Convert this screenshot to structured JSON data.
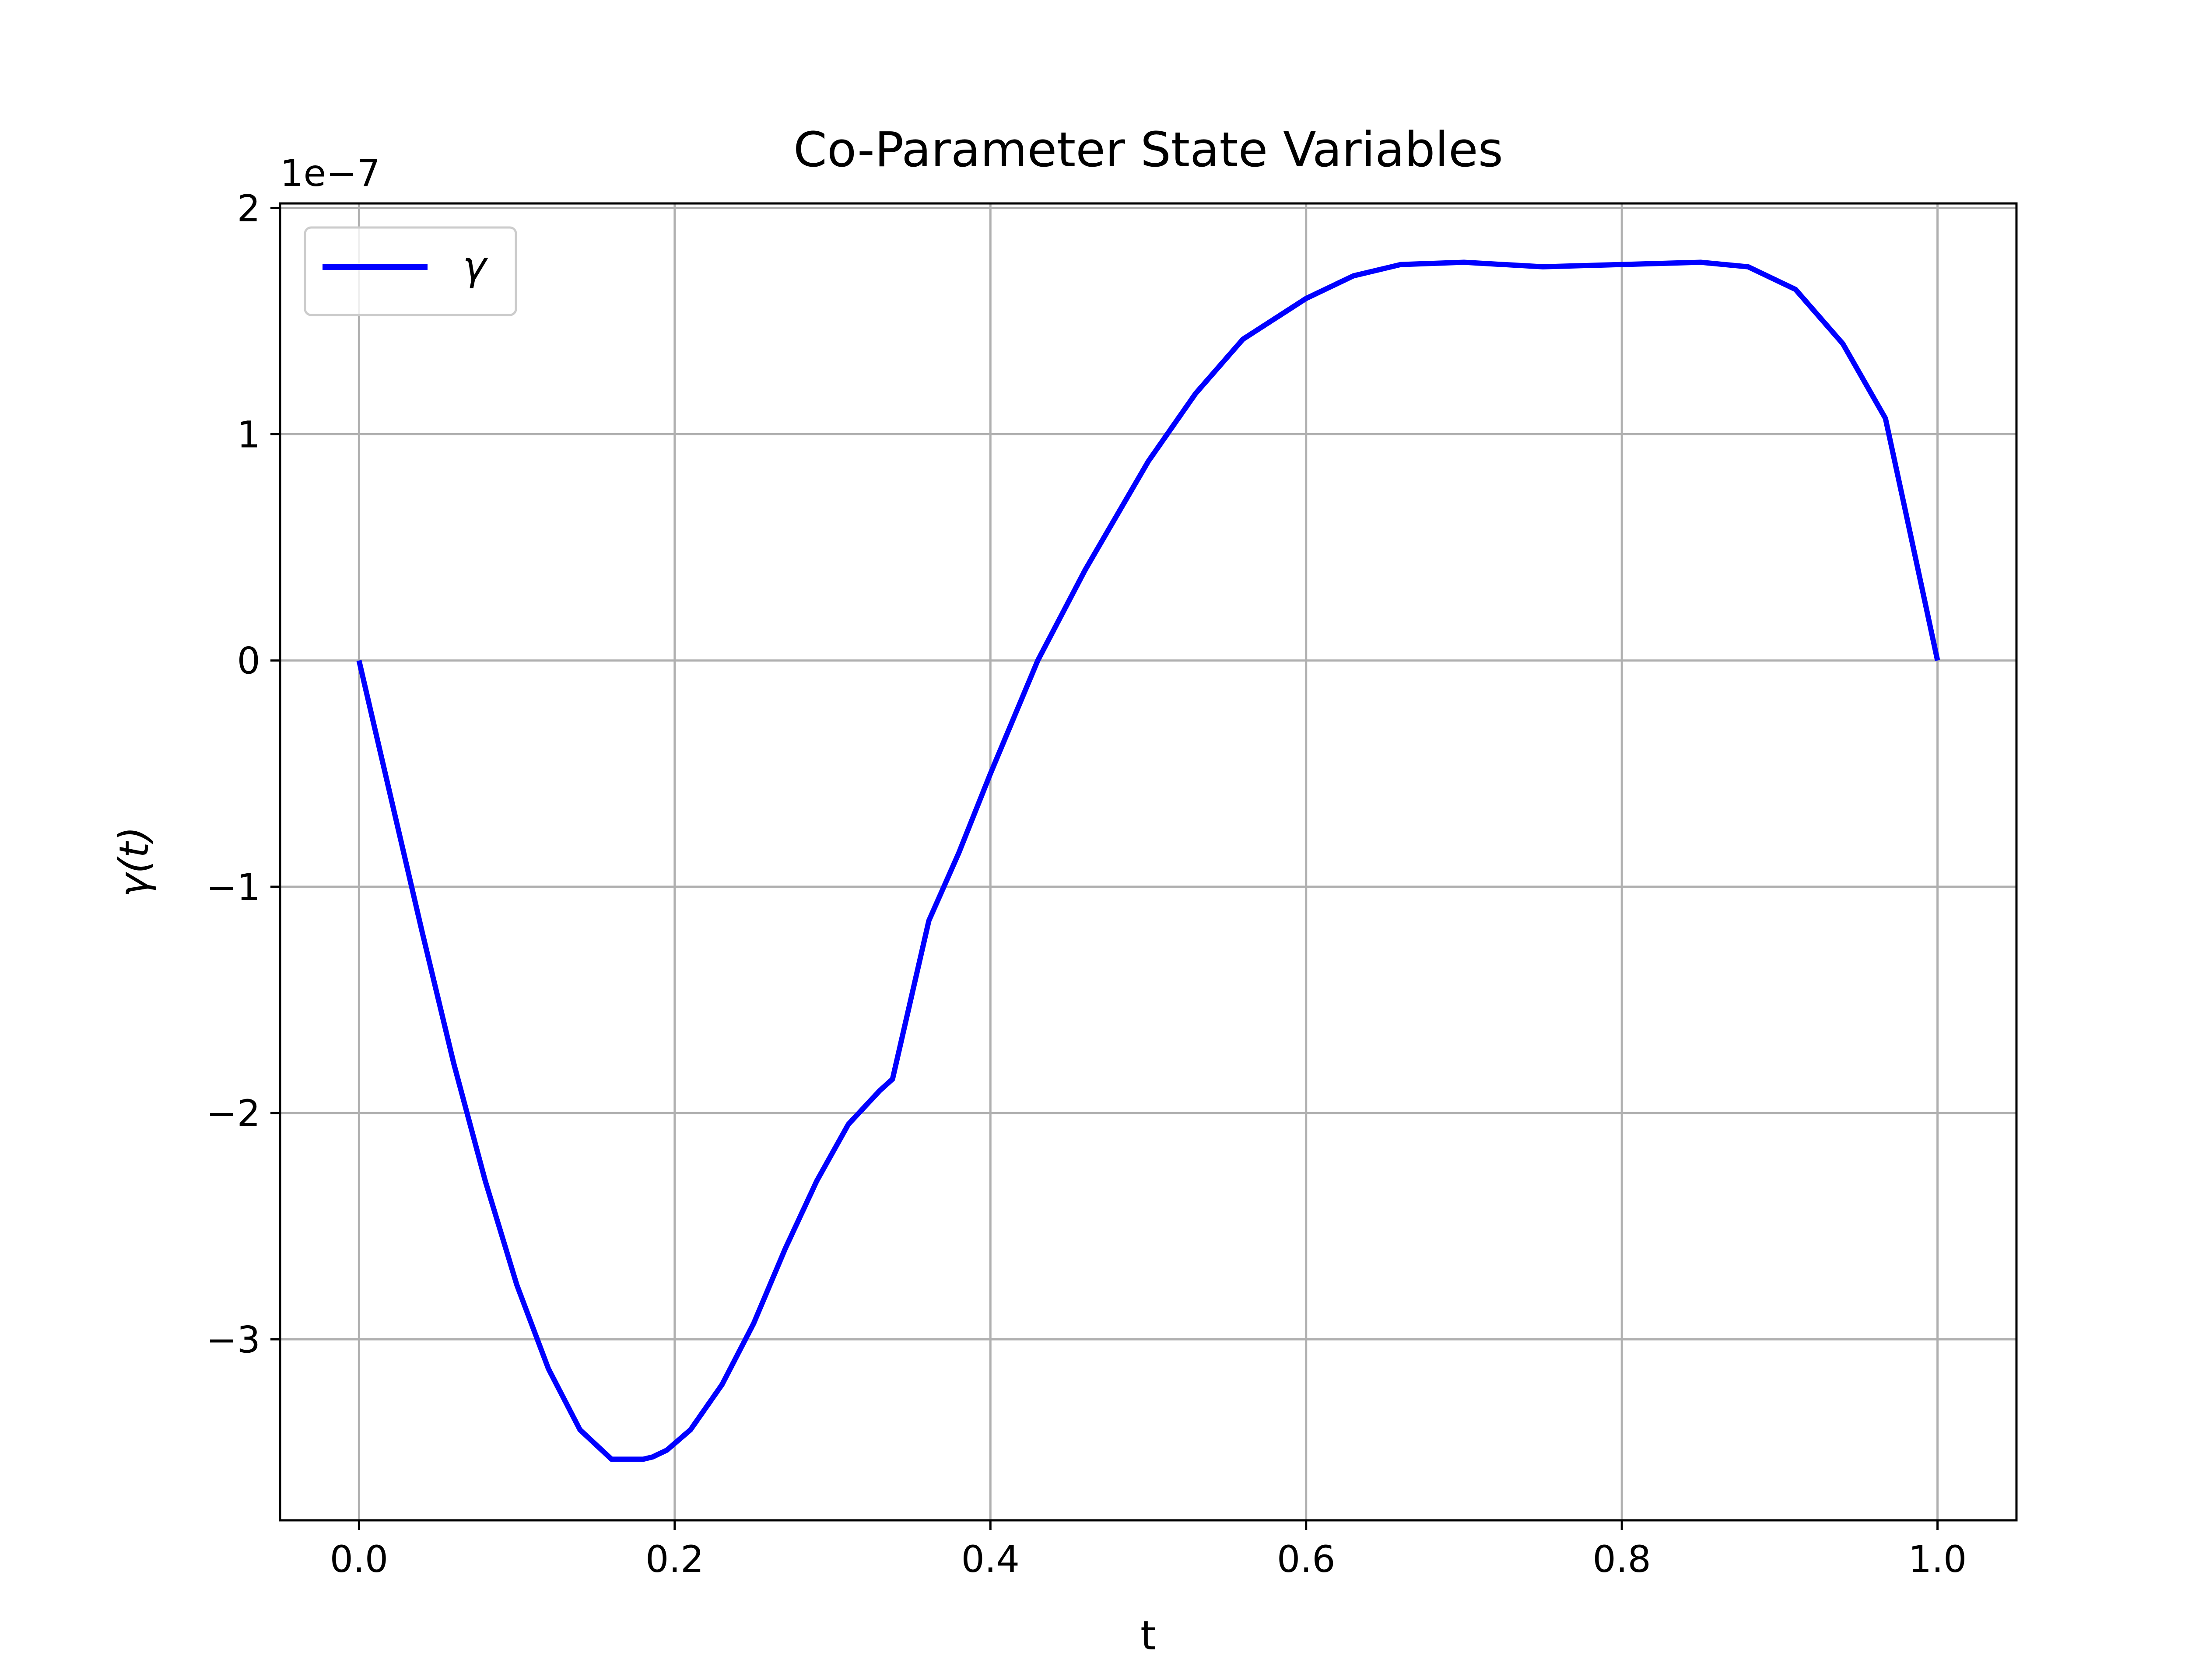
{
  "chart_data": {
    "type": "line",
    "title": "Co-Parameter State Variables",
    "xlabel": "t",
    "ylabel": "γ(t)",
    "y_offset_label": "1e−7",
    "y_scale": 1e-07,
    "xlim": [
      -0.05,
      1.05
    ],
    "ylim": [
      -3.8,
      2.02
    ],
    "x_ticks": [
      0.0,
      0.2,
      0.4,
      0.6,
      0.8,
      1.0
    ],
    "x_tick_labels": [
      "0.0",
      "0.2",
      "0.4",
      "0.6",
      "0.8",
      "1.0"
    ],
    "y_ticks": [
      -3,
      -2,
      -1,
      0,
      1,
      2
    ],
    "y_tick_labels": [
      "−3",
      "−2",
      "−1",
      "0",
      "1",
      "2"
    ],
    "grid": true,
    "legend_position": "upper left",
    "series": [
      {
        "name": "γ",
        "color": "#0000ff",
        "x": [
          0.0,
          0.02,
          0.04,
          0.06,
          0.08,
          0.1,
          0.12,
          0.14,
          0.16,
          0.18,
          0.186,
          0.195,
          0.21,
          0.23,
          0.25,
          0.27,
          0.29,
          0.31,
          0.33,
          0.338,
          0.361,
          0.38,
          0.4,
          0.43,
          0.46,
          0.5,
          0.53,
          0.56,
          0.6,
          0.63,
          0.66,
          0.7,
          0.75,
          0.8,
          0.85,
          0.88,
          0.91,
          0.94,
          0.967,
          0.98,
          1.0
        ],
        "y": [
          0.0,
          -0.6,
          -1.2,
          -1.78,
          -2.3,
          -2.76,
          -3.13,
          -3.4,
          -3.53,
          -3.53,
          -3.52,
          -3.49,
          -3.4,
          -3.2,
          -2.93,
          -2.6,
          -2.3,
          -2.05,
          -1.9,
          -1.85,
          -1.15,
          -0.85,
          -0.5,
          0.0,
          0.4,
          0.88,
          1.18,
          1.42,
          1.6,
          1.7,
          1.75,
          1.76,
          1.74,
          1.75,
          1.76,
          1.74,
          1.64,
          1.4,
          1.07,
          0.65,
          0.0
        ]
      }
    ]
  }
}
